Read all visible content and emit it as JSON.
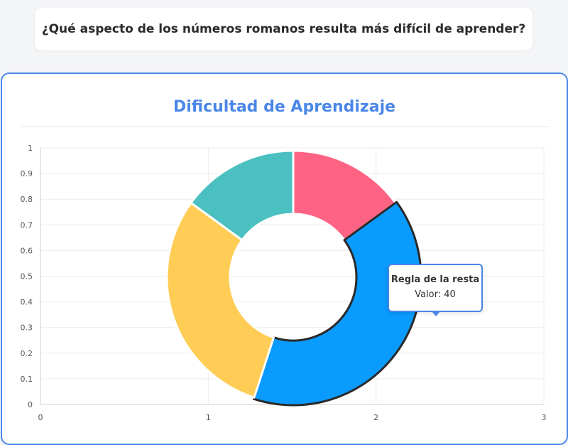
{
  "question": "¿Qué aspecto de los números romanos resulta más difícil de aprender?",
  "chart_data": {
    "type": "pie",
    "title": "Dificultad de Aprendizaje",
    "series": [
      {
        "name": "",
        "values": [
          15,
          40,
          30,
          15
        ]
      }
    ],
    "slice_colors": [
      "#ff6384",
      "#0a9bff",
      "#ffcd56",
      "#4bc0c0"
    ],
    "highlighted_slice_color": "#0a9bff",
    "x_ticks": [
      "0",
      "1",
      "2",
      "3"
    ],
    "y_ticks": [
      "0",
      "0.1",
      "0.2",
      "0.3",
      "0.4",
      "0.5",
      "0.6",
      "0.7",
      "0.8",
      "0.9",
      "1"
    ],
    "xlim": [
      0,
      3
    ],
    "ylim": [
      0,
      1
    ],
    "grid": true,
    "tooltip": {
      "title": "Regla de la resta",
      "value_text": "Valor: 40"
    }
  }
}
